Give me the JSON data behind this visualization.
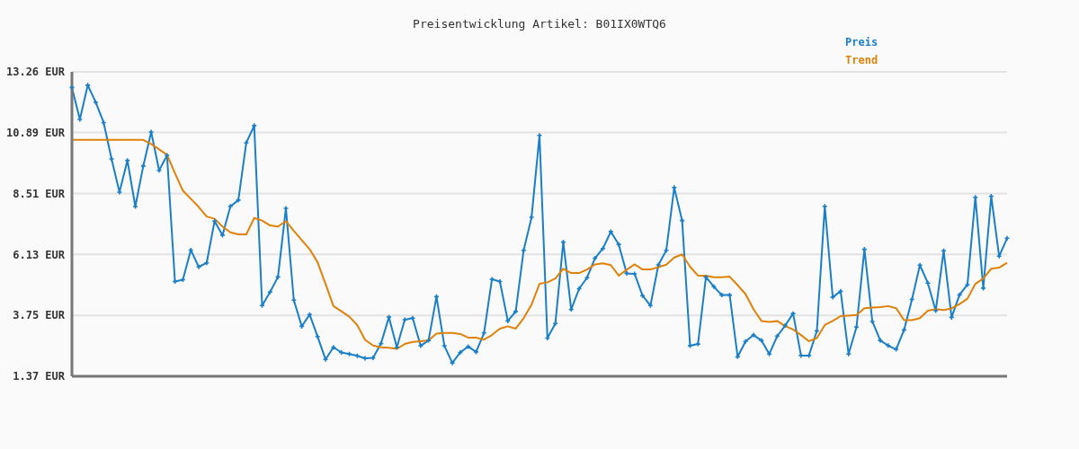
{
  "chart_data": {
    "type": "line",
    "title": "Preisentwicklung Artikel: B01IX0WTQ6",
    "categories": [
      null,
      null,
      null,
      null,
      null,
      null,
      null,
      null,
      null,
      null,
      null,
      null,
      null,
      null,
      null,
      null,
      null,
      null,
      null,
      null,
      null,
      null,
      null,
      null,
      null,
      null,
      null,
      null,
      null,
      null,
      null,
      null,
      null,
      null,
      null,
      null,
      null,
      null,
      null,
      null,
      null,
      null,
      null,
      null,
      null,
      null,
      null,
      null,
      null,
      null,
      null,
      null,
      null,
      null,
      null,
      null,
      null,
      null,
      null,
      null,
      null,
      null,
      null,
      null,
      null,
      null,
      null,
      null,
      null,
      null,
      null,
      null,
      null,
      null,
      null,
      null,
      null,
      null,
      null,
      null,
      null,
      null,
      null,
      null,
      null,
      null,
      null,
      null,
      null,
      null,
      null,
      null,
      null,
      null,
      null,
      null,
      null,
      null,
      null,
      null,
      null,
      null,
      null,
      null,
      null,
      null,
      null,
      null,
      null,
      null,
      null,
      null,
      null,
      null,
      null,
      null,
      null,
      null,
      null
    ],
    "series": [
      {
        "name": "Preis",
        "color": "#1a7fc8",
        "marker": "cross",
        "values": [
          12.65,
          11.4,
          12.74,
          12.07,
          11.28,
          9.86,
          8.56,
          9.8,
          8.0,
          9.58,
          10.91,
          9.41,
          10.0,
          5.07,
          5.14,
          6.3,
          5.64,
          5.8,
          7.43,
          6.88,
          8.01,
          8.25,
          10.49,
          11.16,
          4.13,
          4.66,
          5.25,
          7.93,
          4.34,
          3.32,
          3.78,
          2.92,
          2.03,
          2.5,
          2.3,
          2.24,
          2.17,
          2.07,
          2.09,
          2.65,
          3.68,
          2.5,
          3.58,
          3.64,
          2.56,
          2.77,
          4.48,
          2.56,
          1.89,
          2.3,
          2.53,
          2.32,
          3.06,
          5.16,
          5.07,
          3.53,
          3.9,
          6.29,
          7.58,
          10.78,
          2.86,
          3.43,
          6.61,
          3.98,
          4.79,
          5.22,
          5.98,
          6.36,
          7.02,
          6.52,
          5.39,
          5.37,
          4.52,
          4.13,
          5.72,
          6.29,
          8.74,
          7.45,
          2.56,
          2.63,
          5.24,
          4.87,
          4.54,
          4.54,
          2.13,
          2.73,
          2.98,
          2.77,
          2.24,
          2.94,
          3.35,
          3.82,
          2.18,
          2.18,
          3.14,
          8.01,
          4.46,
          4.69,
          2.24,
          3.29,
          6.33,
          3.51,
          2.77,
          2.57,
          2.42,
          3.18,
          4.37,
          5.71,
          5.01,
          3.93,
          6.27,
          3.67,
          4.55,
          4.95,
          8.36,
          4.81,
          8.4,
          6.06,
          6.76
        ]
      },
      {
        "name": "Trend",
        "color": "#e0820a",
        "marker": "none",
        "values": [
          10.6,
          10.6,
          10.6,
          10.6,
          10.6,
          10.6,
          10.6,
          10.6,
          10.6,
          10.6,
          10.44,
          10.23,
          10.02,
          9.3,
          8.62,
          8.3,
          7.98,
          7.61,
          7.52,
          7.22,
          6.99,
          6.91,
          6.91,
          7.55,
          7.45,
          7.26,
          7.22,
          7.43,
          7.05,
          6.69,
          6.33,
          5.82,
          4.98,
          4.11,
          3.91,
          3.7,
          3.37,
          2.79,
          2.57,
          2.5,
          2.48,
          2.44,
          2.63,
          2.71,
          2.74,
          2.77,
          3.04,
          3.06,
          3.06,
          3.02,
          2.88,
          2.88,
          2.8,
          2.98,
          3.23,
          3.32,
          3.23,
          3.64,
          4.17,
          4.98,
          5.04,
          5.19,
          5.57,
          5.4,
          5.4,
          5.54,
          5.74,
          5.78,
          5.71,
          5.3,
          5.53,
          5.74,
          5.54,
          5.54,
          5.63,
          5.73,
          6.01,
          6.13,
          5.65,
          5.3,
          5.3,
          5.24,
          5.24,
          5.26,
          4.93,
          4.58,
          3.99,
          3.53,
          3.49,
          3.53,
          3.33,
          3.2,
          2.98,
          2.74,
          2.86,
          3.37,
          3.53,
          3.72,
          3.74,
          3.76,
          4.03,
          4.05,
          4.07,
          4.11,
          4.03,
          3.56,
          3.56,
          3.64,
          3.93,
          3.99,
          3.96,
          4.02,
          4.19,
          4.4,
          4.98,
          5.19,
          5.57,
          5.61,
          5.8
        ]
      }
    ],
    "ylim": [
      1.37,
      13.26
    ],
    "yticks": [
      {
        "value": 1.37,
        "label": "1.37 EUR"
      },
      {
        "value": 3.75,
        "label": "3.75 EUR"
      },
      {
        "value": 6.13,
        "label": "6.13 EUR"
      },
      {
        "value": 8.51,
        "label": "8.51 EUR"
      },
      {
        "value": 10.89,
        "label": "10.89 EUR"
      },
      {
        "value": 13.26,
        "label": "13.26 EUR"
      }
    ],
    "grid": "y",
    "legend": "top right",
    "line_style": "solid"
  }
}
